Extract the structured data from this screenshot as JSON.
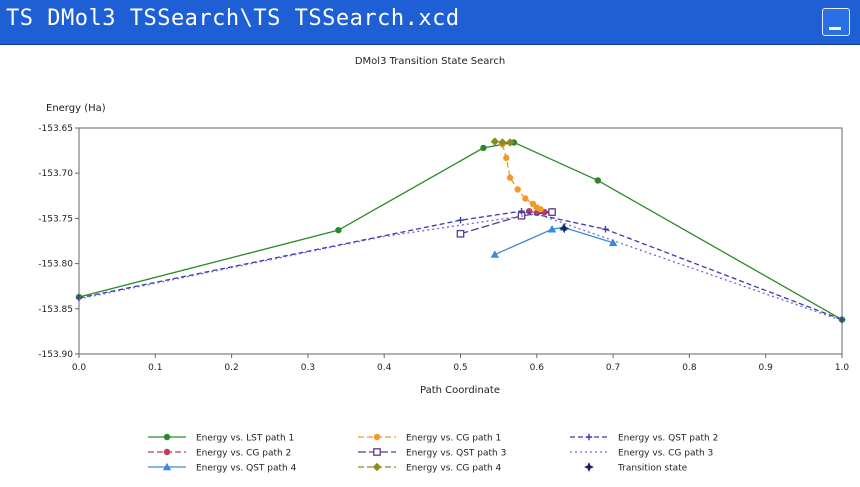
{
  "window": {
    "title": "TS DMol3 TSSearch\\TS TSSearch.xcd"
  },
  "chart_data": {
    "type": "line",
    "title": "DMol3 Transition State Search",
    "xlabel": "Path Coordinate",
    "ylabel": "Energy (Ha)",
    "xlim": [
      0.0,
      1.0
    ],
    "ylim": [
      -153.9,
      -153.65
    ],
    "x_ticks": [
      "0.0",
      "0.1",
      "0.2",
      "0.3",
      "0.4",
      "0.5",
      "0.6",
      "0.7",
      "0.8",
      "0.9",
      "1.0"
    ],
    "y_ticks": [
      "-153.65",
      "-153.70",
      "-153.75",
      "-153.80",
      "-153.85",
      "-153.90"
    ],
    "grid": false,
    "legend_position": "bottom",
    "series": [
      {
        "name": "Energy vs. LST path 1",
        "color": "#2a8a2a",
        "dash": "",
        "marker": "circle",
        "x": [
          0.0,
          0.34,
          0.53,
          0.57,
          0.68,
          1.0
        ],
        "y": [
          -153.837,
          -153.763,
          -153.672,
          -153.666,
          -153.708,
          -153.862
        ]
      },
      {
        "name": "Energy vs. CG path 2",
        "color": "#c03a5a",
        "dash": "6,3",
        "marker": "circle",
        "x": [
          0.59,
          0.6,
          0.61,
          0.62
        ],
        "y": [
          -153.742,
          -153.744,
          -153.743,
          -153.742
        ]
      },
      {
        "name": "Energy vs. QST path 4",
        "color": "#3a8ad8",
        "dash": "",
        "marker": "triangle",
        "x": [
          0.545,
          0.62,
          0.635,
          0.7
        ],
        "y": [
          -153.79,
          -153.762,
          -153.76,
          -153.777
        ]
      },
      {
        "name": "Energy vs. CG path 1",
        "color": "#f09a2a",
        "dash": "6,3",
        "marker": "circle",
        "x": [
          0.555,
          0.56,
          0.565,
          0.575,
          0.585,
          0.595,
          0.6,
          0.605
        ],
        "y": [
          -153.668,
          -153.683,
          -153.705,
          -153.718,
          -153.728,
          -153.734,
          -153.738,
          -153.74
        ]
      },
      {
        "name": "Energy vs. QST path 3",
        "color": "#5a3a8a",
        "dash": "8,3",
        "marker": "square",
        "x": [
          0.5,
          0.58,
          0.62
        ],
        "y": [
          -153.767,
          -153.747,
          -153.743
        ]
      },
      {
        "name": "Energy vs. CG path 4",
        "color": "#8a8a20",
        "dash": "6,3",
        "marker": "diamond",
        "x": [
          0.545,
          0.555,
          0.565
        ],
        "y": [
          -153.665,
          -153.666,
          -153.666
        ]
      },
      {
        "name": "Energy vs. QST path 2",
        "color": "#3a3ab0",
        "dash": "5,3",
        "marker": "cross",
        "x": [
          0.0,
          0.5,
          0.58,
          0.69,
          1.0
        ],
        "y": [
          -153.838,
          -153.752,
          -153.742,
          -153.762,
          -153.862
        ]
      },
      {
        "name": "Energy vs. CG path 3",
        "color": "#6a6ad0",
        "dash": "2,3",
        "marker": "none",
        "x": [
          0.0,
          0.4,
          0.6,
          1.0
        ],
        "y": [
          -153.839,
          -153.77,
          -153.745,
          -153.863
        ]
      },
      {
        "name": "Transition state",
        "color": "#202060",
        "dash": "",
        "marker": "star",
        "line": false,
        "x": [
          0.636
        ],
        "y": [
          -153.761
        ]
      }
    ]
  }
}
